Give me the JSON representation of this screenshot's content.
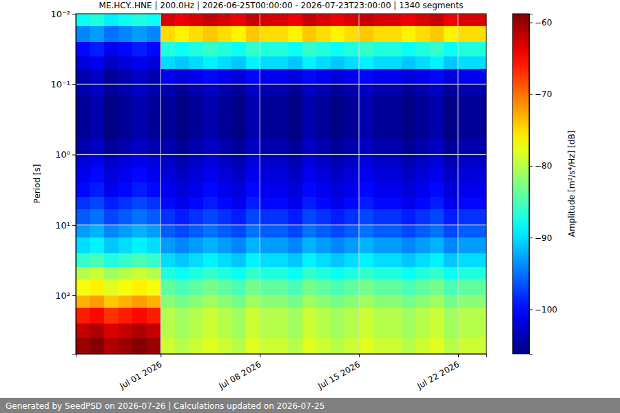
{
  "chart_data": {
    "type": "heatmap",
    "title": "ME.HCY..HNE | 200.0Hz | 2026-06-25T00:00:00 - 2026-07-23T23:00:00 | 1340 segments",
    "y_label": "Period [s]",
    "log": "y",
    "grid": true,
    "xlim": [
      "2026-06-25",
      "2026-07-24"
    ],
    "xticks": [
      {
        "value": "2026-07-01",
        "label": "Jul 01 2026"
      },
      {
        "value": "2026-07-08",
        "label": "Jul 08 2026"
      },
      {
        "value": "2026-07-15",
        "label": "Jul 15 2026"
      },
      {
        "value": "2026-07-22",
        "label": "Jul 22 2026"
      }
    ],
    "ylim": [
      676,
      0.01
    ],
    "yticks": [
      {
        "value": 0.01,
        "label": "10⁻²"
      },
      {
        "value": 0.1,
        "label": "10⁻¹"
      },
      {
        "value": 1,
        "label": "10⁰"
      },
      {
        "value": 10,
        "label": "10¹"
      },
      {
        "value": 100,
        "label": "10²"
      }
    ],
    "x_edges": [
      "2026-06-25",
      "2026-06-26",
      "2026-06-27",
      "2026-06-28",
      "2026-06-29",
      "2026-06-30",
      "2026-07-01",
      "2026-07-02",
      "2026-07-03",
      "2026-07-04",
      "2026-07-05",
      "2026-07-06",
      "2026-07-07",
      "2026-07-08",
      "2026-07-09",
      "2026-07-10",
      "2026-07-11",
      "2026-07-12",
      "2026-07-13",
      "2026-07-14",
      "2026-07-15",
      "2026-07-16",
      "2026-07-17",
      "2026-07-18",
      "2026-07-19",
      "2026-07-20",
      "2026-07-21",
      "2026-07-22",
      "2026-07-23",
      "2026-07-24"
    ],
    "y_edges": [
      0.01,
      0.015,
      0.025,
      0.04,
      0.06,
      0.1,
      0.15,
      0.25,
      0.4,
      0.6,
      1,
      1.5,
      2.5,
      4,
      6,
      10,
      15,
      25,
      40,
      60,
      100,
      150,
      250,
      400,
      676
    ],
    "z": [
      [
        -88,
        -87,
        -89,
        -88,
        -87,
        -88,
        -63,
        -64,
        -63,
        -62,
        -63,
        -64,
        -62,
        -63,
        -63,
        -64,
        -62,
        -63,
        -64,
        -63,
        -62,
        -63,
        -63,
        -64,
        -63,
        -62,
        -64,
        -63,
        -63
      ],
      [
        -94,
        -93,
        -95,
        -94,
        -93,
        -94,
        -75,
        -76,
        -75,
        -74,
        -75,
        -76,
        -74,
        -75,
        -75,
        -76,
        -74,
        -75,
        -76,
        -75,
        -74,
        -75,
        -75,
        -76,
        -75,
        -74,
        -76,
        -75,
        -75
      ],
      [
        -100,
        -99,
        -101,
        -100,
        -99,
        -100,
        -87,
        -88,
        -87,
        -86,
        -87,
        -88,
        -86,
        -87,
        -87,
        -88,
        -86,
        -87,
        -88,
        -87,
        -86,
        -87,
        -87,
        -88,
        -87,
        -86,
        -88,
        -87,
        -87
      ],
      [
        -102,
        -101,
        -103,
        -102,
        -101,
        -102,
        -90,
        -91,
        -90,
        -89,
        -90,
        -91,
        -89,
        -90,
        -90,
        -91,
        -89,
        -90,
        -91,
        -90,
        -89,
        -90,
        -90,
        -91,
        -90,
        -89,
        -91,
        -90,
        -90
      ],
      [
        -104,
        -103,
        -105,
        -104,
        -103,
        -104,
        -101,
        -102,
        -101,
        -100,
        -101,
        -102,
        -100,
        -101,
        -101,
        -102,
        -100,
        -101,
        -102,
        -101,
        -100,
        -101,
        -101,
        -102,
        -101,
        -100,
        -102,
        -101,
        -101
      ],
      [
        -104,
        -103,
        -105,
        -104,
        -103,
        -104,
        -104,
        -105,
        -104,
        -103,
        -104,
        -105,
        -103,
        -104,
        -104,
        -105,
        -103,
        -104,
        -105,
        -104,
        -103,
        -104,
        -104,
        -105,
        -104,
        -103,
        -105,
        -104,
        -104
      ],
      [
        -105,
        -104,
        -106,
        -105,
        -104,
        -105,
        -105,
        -106,
        -105,
        -104,
        -105,
        -106,
        -104,
        -105,
        -105,
        -106,
        -104,
        -105,
        -106,
        -105,
        -104,
        -105,
        -105,
        -106,
        -105,
        -104,
        -106,
        -105,
        -105
      ],
      [
        -105,
        -104,
        -106,
        -105,
        -104,
        -105,
        -105,
        -106,
        -105,
        -104,
        -105,
        -106,
        -104,
        -105,
        -105,
        -106,
        -104,
        -105,
        -106,
        -105,
        -104,
        -105,
        -105,
        -106,
        -105,
        -104,
        -106,
        -105,
        -105
      ],
      [
        -105,
        -104,
        -106,
        -105,
        -104,
        -105,
        -105,
        -106,
        -105,
        -104,
        -105,
        -106,
        -104,
        -105,
        -105,
        -106,
        -104,
        -105,
        -106,
        -105,
        -104,
        -105,
        -105,
        -106,
        -105,
        -104,
        -106,
        -105,
        -105
      ],
      [
        -104,
        -103,
        -105,
        -104,
        -103,
        -104,
        -104,
        -105,
        -104,
        -103,
        -104,
        -105,
        -103,
        -104,
        -104,
        -105,
        -103,
        -104,
        -105,
        -104,
        -103,
        -104,
        -104,
        -105,
        -104,
        -103,
        -105,
        -104,
        -104
      ],
      [
        -102,
        -101,
        -103,
        -102,
        -101,
        -102,
        -103,
        -104,
        -103,
        -102,
        -103,
        -104,
        -102,
        -103,
        -103,
        -104,
        -102,
        -103,
        -104,
        -103,
        -102,
        -103,
        -103,
        -104,
        -103,
        -102,
        -104,
        -103,
        -103
      ],
      [
        -101,
        -100,
        -102,
        -101,
        -100,
        -101,
        -102,
        -103,
        -102,
        -101,
        -102,
        -103,
        -101,
        -102,
        -102,
        -103,
        -101,
        -102,
        -103,
        -102,
        -101,
        -102,
        -102,
        -103,
        -102,
        -101,
        -103,
        -102,
        -102
      ],
      [
        -100,
        -99,
        -101,
        -100,
        -99,
        -100,
        -101,
        -102,
        -101,
        -100,
        -101,
        -102,
        -100,
        -101,
        -101,
        -102,
        -100,
        -101,
        -102,
        -101,
        -100,
        -101,
        -101,
        -102,
        -101,
        -100,
        -102,
        -101,
        -101
      ],
      [
        -98,
        -97,
        -99,
        -98,
        -97,
        -98,
        -100,
        -101,
        -100,
        -99,
        -100,
        -101,
        -99,
        -100,
        -100,
        -101,
        -99,
        -100,
        -101,
        -100,
        -99,
        -100,
        -100,
        -101,
        -100,
        -99,
        -101,
        -100,
        -100
      ],
      [
        -96,
        -95,
        -97,
        -96,
        -95,
        -96,
        -98,
        -99,
        -98,
        -97,
        -98,
        -99,
        -97,
        -98,
        -98,
        -99,
        -97,
        -98,
        -99,
        -98,
        -97,
        -98,
        -98,
        -99,
        -98,
        -97,
        -99,
        -98,
        -98
      ],
      [
        -93,
        -92,
        -94,
        -93,
        -92,
        -93,
        -96,
        -97,
        -96,
        -95,
        -96,
        -97,
        -95,
        -96,
        -96,
        -97,
        -95,
        -96,
        -97,
        -96,
        -95,
        -96,
        -96,
        -97,
        -96,
        -95,
        -97,
        -96,
        -96
      ],
      [
        -90,
        -89,
        -91,
        -90,
        -89,
        -90,
        -93,
        -94,
        -93,
        -92,
        -93,
        -94,
        -92,
        -93,
        -93,
        -94,
        -92,
        -93,
        -94,
        -93,
        -92,
        -93,
        -93,
        -94,
        -93,
        -92,
        -94,
        -93,
        -93
      ],
      [
        -86,
        -85,
        -87,
        -86,
        -85,
        -86,
        -90,
        -91,
        -90,
        -89,
        -90,
        -91,
        -89,
        -90,
        -90,
        -91,
        -89,
        -90,
        -91,
        -90,
        -89,
        -90,
        -90,
        -91,
        -90,
        -89,
        -91,
        -90,
        -90
      ],
      [
        -80,
        -79,
        -81,
        -80,
        -79,
        -80,
        -87,
        -88,
        -87,
        -86,
        -87,
        -88,
        -86,
        -87,
        -87,
        -88,
        -86,
        -87,
        -88,
        -87,
        -86,
        -87,
        -87,
        -88,
        -87,
        -86,
        -88,
        -87,
        -87
      ],
      [
        -77,
        -76,
        -78,
        -77,
        -76,
        -77,
        -84,
        -85,
        -84,
        -83,
        -84,
        -85,
        -83,
        -84,
        -84,
        -85,
        -83,
        -84,
        -85,
        -84,
        -83,
        -84,
        -84,
        -85,
        -84,
        -83,
        -85,
        -84,
        -84
      ],
      [
        -73,
        -72,
        -74,
        -73,
        -72,
        -73,
        -82,
        -83,
        -82,
        -81,
        -82,
        -83,
        -81,
        -82,
        -82,
        -83,
        -81,
        -82,
        -83,
        -82,
        -81,
        -82,
        -82,
        -83,
        -82,
        -81,
        -83,
        -82,
        -82
      ],
      [
        -66,
        -65,
        -67,
        -66,
        -65,
        -66,
        -80,
        -81,
        -80,
        -79,
        -80,
        -81,
        -79,
        -80,
        -80,
        -81,
        -79,
        -80,
        -81,
        -80,
        -79,
        -80,
        -80,
        -81,
        -80,
        -79,
        -81,
        -80,
        -80
      ],
      [
        -62,
        -61,
        -63,
        -62,
        -61,
        -62,
        -80,
        -81,
        -80,
        -79,
        -80,
        -81,
        -79,
        -80,
        -80,
        -81,
        -79,
        -80,
        -81,
        -80,
        -79,
        -80,
        -80,
        -81,
        -80,
        -79,
        -81,
        -80,
        -80
      ],
      [
        -60,
        -59,
        -61,
        -60,
        -59,
        -60,
        -79,
        -80,
        -79,
        -78,
        -79,
        -80,
        -78,
        -79,
        -79,
        -80,
        -78,
        -79,
        -80,
        -79,
        -78,
        -79,
        -79,
        -80,
        -79,
        -78,
        -80,
        -79,
        -79
      ]
    ],
    "colorbar": {
      "label": "Amplitude [m²/s⁴/Hz] [dB]",
      "range": [
        -106.2,
        -58.8
      ],
      "ticks": [
        {
          "value": -60,
          "label": "−60"
        },
        {
          "value": -70,
          "label": "−70"
        },
        {
          "value": -80,
          "label": "−80"
        },
        {
          "value": -90,
          "label": "−90"
        },
        {
          "value": -100,
          "label": "−100"
        }
      ]
    }
  },
  "footer": "Generated by SeedPSD on 2026-07-26 | Calculations updated on 2026-07-25"
}
